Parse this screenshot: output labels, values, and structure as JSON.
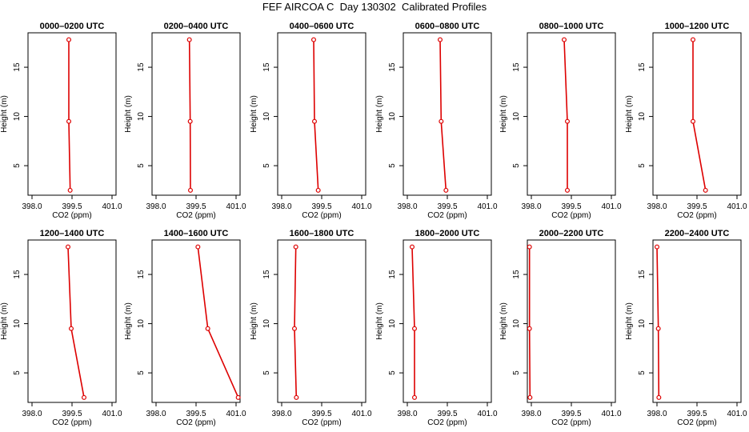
{
  "title": "FEF AIRCOA C  Day 130302  Calibrated Profiles",
  "chart_data": [
    {
      "type": "line",
      "title": "0000–0200 UTC",
      "xlabel": "CO2 (ppm)",
      "ylabel": "Height (m)",
      "xlim": [
        397.85,
        401.15
      ],
      "ylim": [
        2.0,
        18.5
      ],
      "xticks": [
        398.0,
        399.5,
        401.0
      ],
      "xtick_labels": [
        "398.0",
        "399.5",
        "401.0"
      ],
      "yticks": [
        5,
        10,
        15
      ],
      "ytick_labels": [
        "5",
        "10",
        "15"
      ],
      "series": [
        {
          "color": "#dd0000",
          "points": [
            {
              "x": 399.38,
              "y": 17.8
            },
            {
              "x": 399.38,
              "y": 9.5
            },
            {
              "x": 399.43,
              "y": 2.5
            }
          ]
        }
      ]
    },
    {
      "type": "line",
      "title": "0200–0400 UTC",
      "xlabel": "CO2 (ppm)",
      "ylabel": "Height (m)",
      "xlim": [
        397.85,
        401.15
      ],
      "ylim": [
        2.0,
        18.5
      ],
      "xticks": [
        398.0,
        399.5,
        401.0
      ],
      "xtick_labels": [
        "398.0",
        "399.5",
        "401.0"
      ],
      "yticks": [
        5,
        10,
        15
      ],
      "ytick_labels": [
        "5",
        "10",
        "15"
      ],
      "series": [
        {
          "color": "#dd0000",
          "points": [
            {
              "x": 399.25,
              "y": 17.8
            },
            {
              "x": 399.28,
              "y": 9.5
            },
            {
              "x": 399.29,
              "y": 2.5
            }
          ]
        }
      ]
    },
    {
      "type": "line",
      "title": "0400–0600 UTC",
      "xlabel": "CO2 (ppm)",
      "ylabel": "Height (m)",
      "xlim": [
        397.85,
        401.15
      ],
      "ylim": [
        2.0,
        18.5
      ],
      "xticks": [
        398.0,
        399.5,
        401.0
      ],
      "xtick_labels": [
        "398.0",
        "399.5",
        "401.0"
      ],
      "yticks": [
        5,
        10,
        15
      ],
      "ytick_labels": [
        "5",
        "10",
        "15"
      ],
      "series": [
        {
          "color": "#dd0000",
          "points": [
            {
              "x": 399.2,
              "y": 17.8
            },
            {
              "x": 399.23,
              "y": 9.5
            },
            {
              "x": 399.37,
              "y": 2.5
            }
          ]
        }
      ]
    },
    {
      "type": "line",
      "title": "0600–0800 UTC",
      "xlabel": "CO2 (ppm)",
      "ylabel": "Height (m)",
      "xlim": [
        397.85,
        401.15
      ],
      "ylim": [
        2.0,
        18.5
      ],
      "xticks": [
        398.0,
        399.5,
        401.0
      ],
      "xtick_labels": [
        "398.0",
        "399.5",
        "401.0"
      ],
      "yticks": [
        5,
        10,
        15
      ],
      "ytick_labels": [
        "5",
        "10",
        "15"
      ],
      "series": [
        {
          "color": "#dd0000",
          "points": [
            {
              "x": 399.23,
              "y": 17.8
            },
            {
              "x": 399.27,
              "y": 9.5
            },
            {
              "x": 399.45,
              "y": 2.5
            }
          ]
        }
      ]
    },
    {
      "type": "line",
      "title": "0800–1000 UTC",
      "xlabel": "CO2 (ppm)",
      "ylabel": "Height (m)",
      "xlim": [
        397.85,
        401.15
      ],
      "ylim": [
        2.0,
        18.5
      ],
      "xticks": [
        398.0,
        399.5,
        401.0
      ],
      "xtick_labels": [
        "398.0",
        "399.5",
        "401.0"
      ],
      "yticks": [
        5,
        10,
        15
      ],
      "ytick_labels": [
        "5",
        "10",
        "15"
      ],
      "series": [
        {
          "color": "#dd0000",
          "points": [
            {
              "x": 399.23,
              "y": 17.8
            },
            {
              "x": 399.35,
              "y": 9.5
            },
            {
              "x": 399.35,
              "y": 2.5
            }
          ]
        }
      ]
    },
    {
      "type": "line",
      "title": "1000–1200 UTC",
      "xlabel": "CO2 (ppm)",
      "ylabel": "Height (m)",
      "xlim": [
        397.85,
        401.15
      ],
      "ylim": [
        2.0,
        18.5
      ],
      "xticks": [
        398.0,
        399.5,
        401.0
      ],
      "xtick_labels": [
        "398.0",
        "399.5",
        "401.0"
      ],
      "yticks": [
        5,
        10,
        15
      ],
      "ytick_labels": [
        "5",
        "10",
        "15"
      ],
      "series": [
        {
          "color": "#dd0000",
          "points": [
            {
              "x": 399.35,
              "y": 17.8
            },
            {
              "x": 399.35,
              "y": 9.5
            },
            {
              "x": 399.82,
              "y": 2.5
            }
          ]
        }
      ]
    },
    {
      "type": "line",
      "title": "1200–1400 UTC",
      "xlabel": "CO2 (ppm)",
      "ylabel": "Height (m)",
      "xlim": [
        397.85,
        401.15
      ],
      "ylim": [
        2.0,
        18.5
      ],
      "xticks": [
        398.0,
        399.5,
        401.0
      ],
      "xtick_labels": [
        "398.0",
        "399.5",
        "401.0"
      ],
      "yticks": [
        5,
        10,
        15
      ],
      "ytick_labels": [
        "5",
        "10",
        "15"
      ],
      "series": [
        {
          "color": "#dd0000",
          "points": [
            {
              "x": 399.35,
              "y": 17.8
            },
            {
              "x": 399.47,
              "y": 9.5
            },
            {
              "x": 399.95,
              "y": 2.5
            }
          ]
        }
      ]
    },
    {
      "type": "line",
      "title": "1400–1600 UTC",
      "xlabel": "CO2 (ppm)",
      "ylabel": "Height (m)",
      "xlim": [
        397.85,
        401.15
      ],
      "ylim": [
        2.0,
        18.5
      ],
      "xticks": [
        398.0,
        399.5,
        401.0
      ],
      "xtick_labels": [
        "398.0",
        "399.5",
        "401.0"
      ],
      "yticks": [
        5,
        10,
        15
      ],
      "ytick_labels": [
        "5",
        "10",
        "15"
      ],
      "series": [
        {
          "color": "#dd0000",
          "points": [
            {
              "x": 399.57,
              "y": 17.8
            },
            {
              "x": 399.94,
              "y": 9.5
            },
            {
              "x": 401.08,
              "y": 2.5
            }
          ]
        }
      ]
    },
    {
      "type": "line",
      "title": "1600–1800 UTC",
      "xlabel": "CO2 (ppm)",
      "ylabel": "Height (m)",
      "xlim": [
        397.85,
        401.15
      ],
      "ylim": [
        2.0,
        18.5
      ],
      "xticks": [
        398.0,
        399.5,
        401.0
      ],
      "xtick_labels": [
        "398.0",
        "399.5",
        "401.0"
      ],
      "yticks": [
        5,
        10,
        15
      ],
      "ytick_labels": [
        "5",
        "10",
        "15"
      ],
      "series": [
        {
          "color": "#dd0000",
          "points": [
            {
              "x": 398.53,
              "y": 17.8
            },
            {
              "x": 398.48,
              "y": 9.5
            },
            {
              "x": 398.55,
              "y": 2.5
            }
          ]
        }
      ]
    },
    {
      "type": "line",
      "title": "1800–2000 UTC",
      "xlabel": "CO2 (ppm)",
      "ylabel": "Height (m)",
      "xlim": [
        397.85,
        401.15
      ],
      "ylim": [
        2.0,
        18.5
      ],
      "xticks": [
        398.0,
        399.5,
        401.0
      ],
      "xtick_labels": [
        "398.0",
        "399.5",
        "401.0"
      ],
      "yticks": [
        5,
        10,
        15
      ],
      "ytick_labels": [
        "5",
        "10",
        "15"
      ],
      "series": [
        {
          "color": "#dd0000",
          "points": [
            {
              "x": 398.18,
              "y": 17.8
            },
            {
              "x": 398.27,
              "y": 9.5
            },
            {
              "x": 398.27,
              "y": 2.5
            }
          ]
        }
      ]
    },
    {
      "type": "line",
      "title": "2000–2200 UTC",
      "xlabel": "CO2 (ppm)",
      "ylabel": "Height (m)",
      "xlim": [
        397.85,
        401.15
      ],
      "ylim": [
        2.0,
        18.5
      ],
      "xticks": [
        398.0,
        399.5,
        401.0
      ],
      "xtick_labels": [
        "398.0",
        "399.5",
        "401.0"
      ],
      "yticks": [
        5,
        10,
        15
      ],
      "ytick_labels": [
        "5",
        "10",
        "15"
      ],
      "series": [
        {
          "color": "#dd0000",
          "points": [
            {
              "x": 397.93,
              "y": 17.8
            },
            {
              "x": 397.93,
              "y": 9.5
            },
            {
              "x": 397.95,
              "y": 2.5
            }
          ]
        }
      ]
    },
    {
      "type": "line",
      "title": "2200–2400 UTC",
      "xlabel": "CO2 (ppm)",
      "ylabel": "Height (m)",
      "xlim": [
        397.85,
        401.15
      ],
      "ylim": [
        2.0,
        18.5
      ],
      "xticks": [
        398.0,
        399.5,
        401.0
      ],
      "xtick_labels": [
        "398.0",
        "399.5",
        "401.0"
      ],
      "yticks": [
        5,
        10,
        15
      ],
      "ytick_labels": [
        "5",
        "10",
        "15"
      ],
      "series": [
        {
          "color": "#dd0000",
          "points": [
            {
              "x": 398.0,
              "y": 17.8
            },
            {
              "x": 398.05,
              "y": 9.5
            },
            {
              "x": 398.07,
              "y": 2.5
            }
          ]
        }
      ]
    }
  ]
}
